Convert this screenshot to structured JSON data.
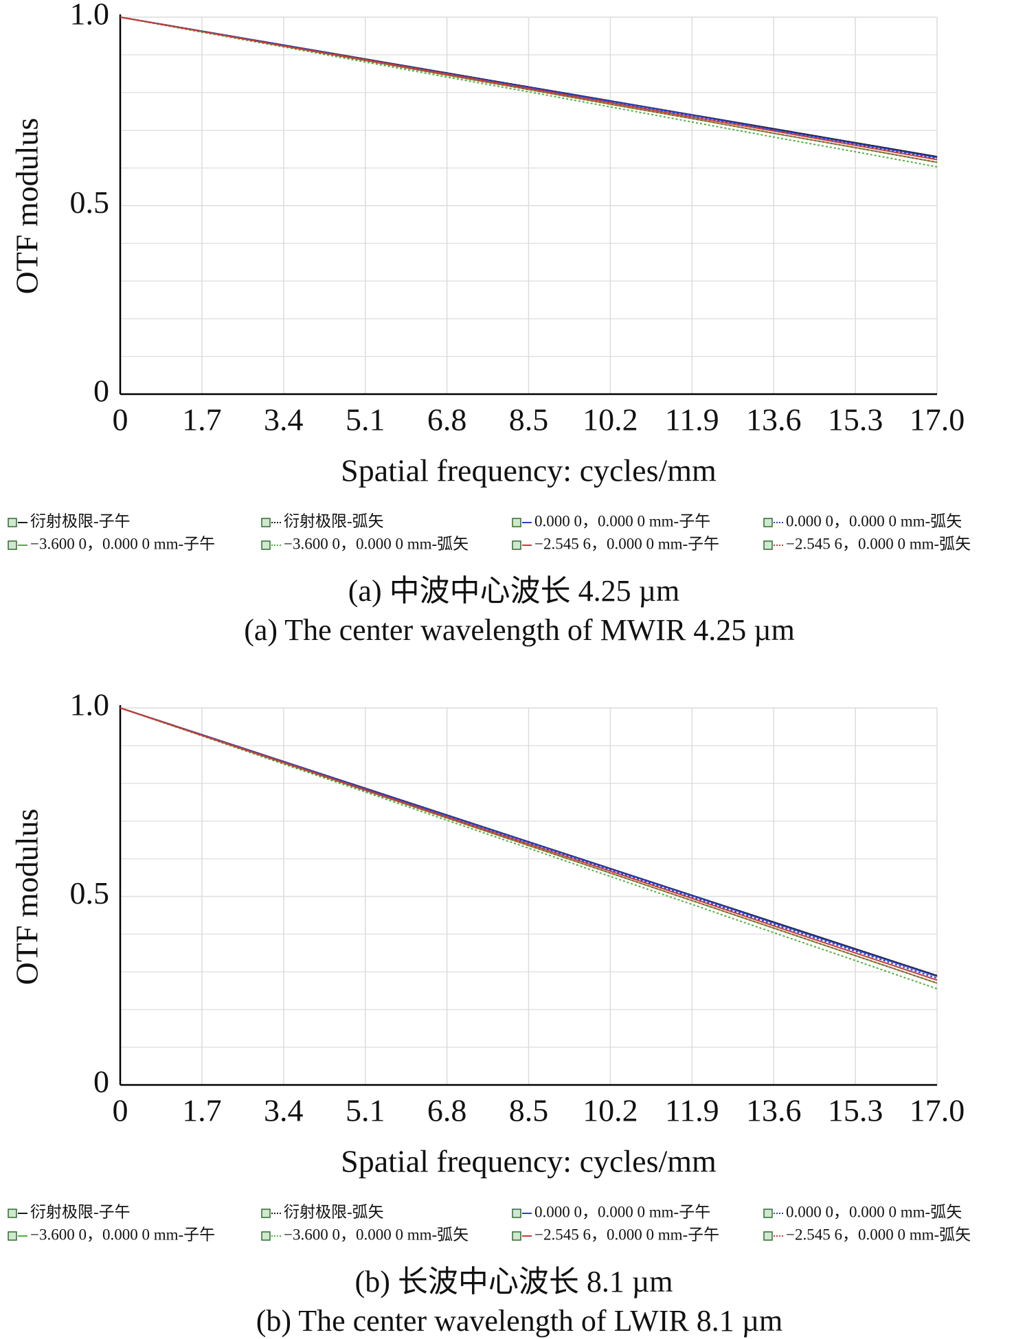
{
  "chart_data": [
    {
      "type": "line",
      "xlabel": "Spatial frequency: cycles/mm",
      "ylabel": "OTF modulus",
      "caption": "(a) 中波中心波长  4.25 µm",
      "caption_en": "(a) The center wavelength of MWIR 4.25 µm",
      "x": [
        0,
        1.7,
        3.4,
        5.1,
        6.8,
        8.5,
        10.2,
        11.9,
        13.6,
        15.3,
        17.0
      ],
      "xlim": [
        0,
        17
      ],
      "xticks": [
        0,
        1.7,
        3.4,
        5.1,
        6.8,
        8.5,
        10.2,
        11.9,
        13.6,
        15.3,
        {
          "value": 17,
          "label": "17.0"
        }
      ],
      "ylim": [
        0,
        1
      ],
      "yticks": [
        0,
        0.5,
        {
          "value": 1,
          "label": "1.0"
        }
      ],
      "y_minor_ticks": [
        0.1,
        0.2,
        0.3,
        0.4,
        0.6,
        0.7,
        0.8,
        0.9
      ],
      "grid": true,
      "series": [
        {
          "name": "衍射极限-子午",
          "color": "#1a1a1a",
          "style": "solid",
          "values": [
            1,
            0.963,
            0.926,
            0.889,
            0.852,
            0.815,
            0.778,
            0.741,
            0.704,
            0.667,
            0.63
          ]
        },
        {
          "name": "衍射极限-弧矢",
          "color": "#1a1a1a",
          "style": "dotted",
          "values": [
            1,
            0.963,
            0.926,
            0.889,
            0.852,
            0.815,
            0.778,
            0.741,
            0.704,
            0.667,
            0.63
          ]
        },
        {
          "name": "0.000 0，0.000 0 mm-子午",
          "color": "#2b3fc4",
          "style": "solid",
          "values": [
            1,
            0.963,
            0.926,
            0.888,
            0.851,
            0.814,
            0.777,
            0.74,
            0.702,
            0.665,
            0.628
          ]
        },
        {
          "name": "0.000 0，0.000 0 mm-弧矢",
          "color": "#2b3fc4",
          "style": "dotted",
          "values": [
            1,
            0.963,
            0.925,
            0.888,
            0.85,
            0.813,
            0.775,
            0.738,
            0.7,
            0.663,
            0.625
          ]
        },
        {
          "name": "−3.600 0，0.000 0 mm-子午",
          "color": "#4caf3a",
          "style": "solid",
          "values": [
            1,
            0.962,
            0.923,
            0.885,
            0.846,
            0.808,
            0.769,
            0.731,
            0.692,
            0.654,
            0.615
          ]
        },
        {
          "name": "−3.600 0，0.000 0 mm-弧矢",
          "color": "#4caf3a",
          "style": "dotted",
          "values": [
            1,
            0.96,
            0.921,
            0.881,
            0.841,
            0.802,
            0.762,
            0.722,
            0.682,
            0.643,
            0.603
          ]
        },
        {
          "name": "−2.545 6，0.000 0 mm-子午",
          "color": "#c83a3a",
          "style": "solid",
          "values": [
            1,
            0.962,
            0.924,
            0.887,
            0.849,
            0.811,
            0.773,
            0.735,
            0.698,
            0.66,
            0.622
          ]
        },
        {
          "name": "−2.545 6，0.000 0 mm-弧矢",
          "color": "#c83a3a",
          "style": "dotted",
          "values": [
            1,
            0.962,
            0.923,
            0.885,
            0.846,
            0.808,
            0.769,
            0.731,
            0.692,
            0.654,
            0.615
          ]
        }
      ]
    },
    {
      "type": "line",
      "xlabel": "Spatial frequency: cycles/mm",
      "ylabel": "OTF modulus",
      "caption": "(b) 长波中心波长  8.1 µm",
      "caption_en": "(b) The center wavelength of LWIR 8.1 µm",
      "x": [
        0,
        1.7,
        3.4,
        5.1,
        6.8,
        8.5,
        10.2,
        11.9,
        13.6,
        15.3,
        17.0
      ],
      "xlim": [
        0,
        17
      ],
      "xticks": [
        0,
        1.7,
        3.4,
        5.1,
        6.8,
        8.5,
        10.2,
        11.9,
        13.6,
        15.3,
        {
          "value": 17,
          "label": "17.0"
        }
      ],
      "ylim": [
        0,
        1
      ],
      "yticks": [
        0,
        0.5,
        {
          "value": 1,
          "label": "1.0"
        }
      ],
      "y_minor_ticks": [
        0.1,
        0.2,
        0.3,
        0.4,
        0.6,
        0.7,
        0.8,
        0.9
      ],
      "grid": true,
      "series": [
        {
          "name": "衍射极限-子午",
          "color": "#1a1a1a",
          "style": "solid",
          "values": [
            1,
            0.929,
            0.858,
            0.787,
            0.716,
            0.645,
            0.574,
            0.503,
            0.432,
            0.361,
            0.29
          ]
        },
        {
          "name": "衍射极限-弧矢",
          "color": "#1a1a1a",
          "style": "dotted",
          "values": [
            1,
            0.929,
            0.858,
            0.787,
            0.716,
            0.645,
            0.574,
            0.503,
            0.432,
            0.361,
            0.29
          ]
        },
        {
          "name": "0.000 0，0.000 0 mm-子午",
          "color": "#2b3fc4",
          "style": "solid",
          "values": [
            1,
            0.929,
            0.858,
            0.786,
            0.715,
            0.644,
            0.573,
            0.502,
            0.43,
            0.359,
            0.288
          ]
        },
        {
          "name": "0.000 0，0.000 0 mm-弧矢",
          "color": "#2b3fc4",
          "style": "dotted",
          "values": [
            1,
            0.928,
            0.857,
            0.785,
            0.713,
            0.642,
            0.57,
            0.498,
            0.426,
            0.355,
            0.283
          ]
        },
        {
          "name": "−3.600 0，0.000 0 mm-子午",
          "color": "#4caf3a",
          "style": "solid",
          "values": [
            1,
            0.927,
            0.854,
            0.781,
            0.708,
            0.635,
            0.562,
            0.489,
            0.416,
            0.343,
            0.27
          ]
        },
        {
          "name": "−3.600 0，0.000 0 mm-弧矢",
          "color": "#4caf3a",
          "style": "dotted",
          "values": [
            1,
            0.926,
            0.851,
            0.777,
            0.702,
            0.628,
            0.553,
            0.479,
            0.404,
            0.33,
            0.255
          ]
        },
        {
          "name": "−2.545 6，0.000 0 mm-子午",
          "color": "#c83a3a",
          "style": "solid",
          "values": [
            1,
            0.928,
            0.856,
            0.783,
            0.711,
            0.639,
            0.567,
            0.495,
            0.422,
            0.35,
            0.278
          ]
        },
        {
          "name": "−2.545 6，0.000 0 mm-弧矢",
          "color": "#c83a3a",
          "style": "dotted",
          "values": [
            1,
            0.927,
            0.854,
            0.781,
            0.708,
            0.635,
            0.562,
            0.489,
            0.416,
            0.343,
            0.27
          ]
        }
      ]
    }
  ]
}
